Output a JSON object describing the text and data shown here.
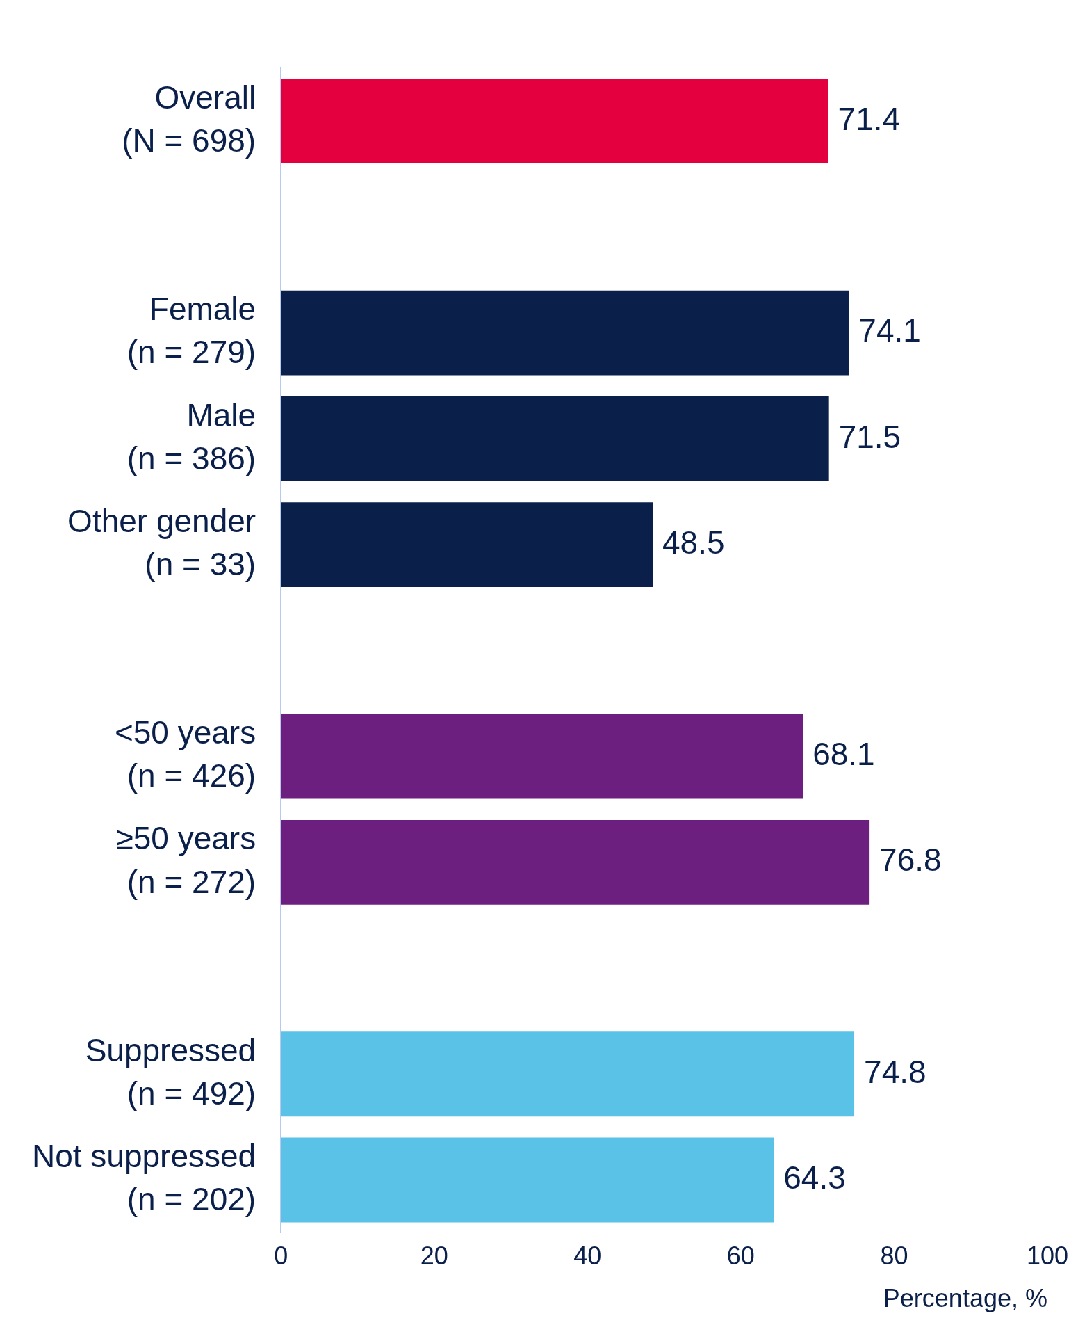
{
  "chart_data": {
    "type": "bar",
    "orientation": "horizontal",
    "categories": [
      "Overall\n(N = 698)",
      null,
      "Female\n(n = 279)",
      "Male\n(n = 386)",
      "Other gender\n(n = 33)",
      null,
      "<50 years\n(n = 426)",
      "≥50 years\n(n = 272)",
      null,
      "Suppressed\n(n = 492)",
      "Not suppressed\n(n = 202)"
    ],
    "values": [
      71.4,
      null,
      74.1,
      71.5,
      48.5,
      null,
      68.1,
      76.8,
      null,
      74.8,
      64.3
    ],
    "colors": [
      "#e4003f",
      "#ffffff",
      "#0a1f4a",
      "#0a1f4a",
      "#0a1f4a",
      "#ffffff",
      "#6d1f7f",
      "#6d1f7f",
      "#ffffff",
      "#5bc2e7",
      "#5bc2e7"
    ],
    "xlim": [
      0,
      100
    ],
    "xticks": [
      0,
      20,
      40,
      60,
      80,
      100
    ],
    "xlabel": "Percentage, %",
    "data_labels": true
  }
}
